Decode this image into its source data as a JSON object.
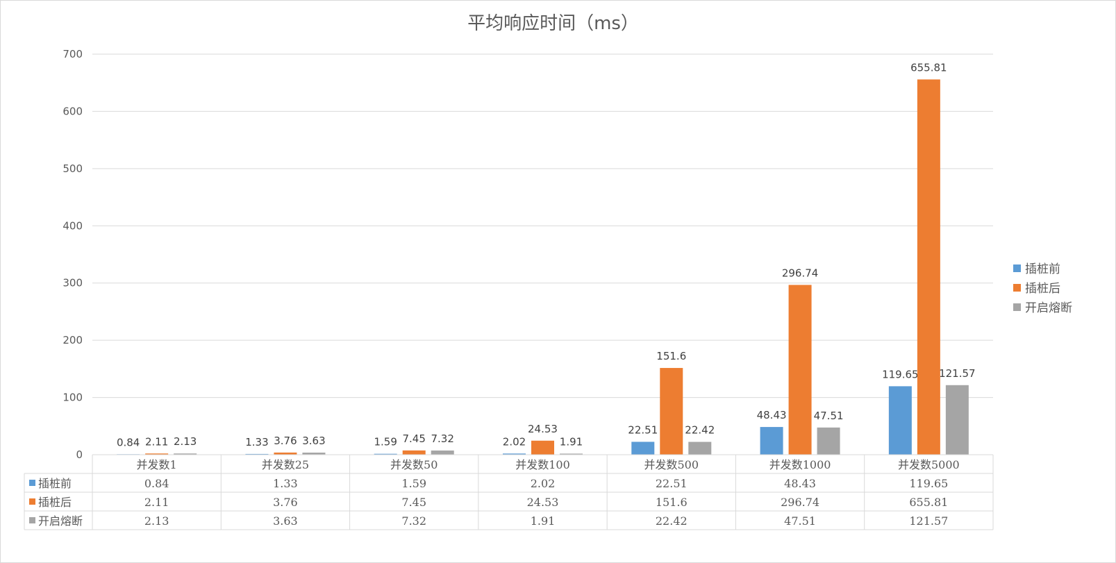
{
  "chart_data": {
    "type": "bar",
    "title": "平均响应时间（ms）",
    "categories": [
      "并发数1",
      "并发数25",
      "并发数50",
      "并发数100",
      "并发数500",
      "并发数1000",
      "并发数5000"
    ],
    "series": [
      {
        "name": "插桩前",
        "color": "#5b9bd5",
        "values": [
          0.84,
          1.33,
          1.59,
          2.02,
          22.51,
          48.43,
          119.65
        ]
      },
      {
        "name": "插桩后",
        "color": "#ed7d31",
        "values": [
          2.11,
          3.76,
          7.45,
          24.53,
          151.6,
          296.74,
          655.81
        ]
      },
      {
        "name": "开启熔断",
        "color": "#a5a5a5",
        "values": [
          2.13,
          3.63,
          7.32,
          1.91,
          22.42,
          47.51,
          121.57
        ]
      }
    ],
    "ylim": [
      0,
      700
    ],
    "yticks": [
      0,
      100,
      200,
      300,
      400,
      500,
      600,
      700
    ],
    "grid": true,
    "legend_position": "right",
    "data_table": true
  }
}
